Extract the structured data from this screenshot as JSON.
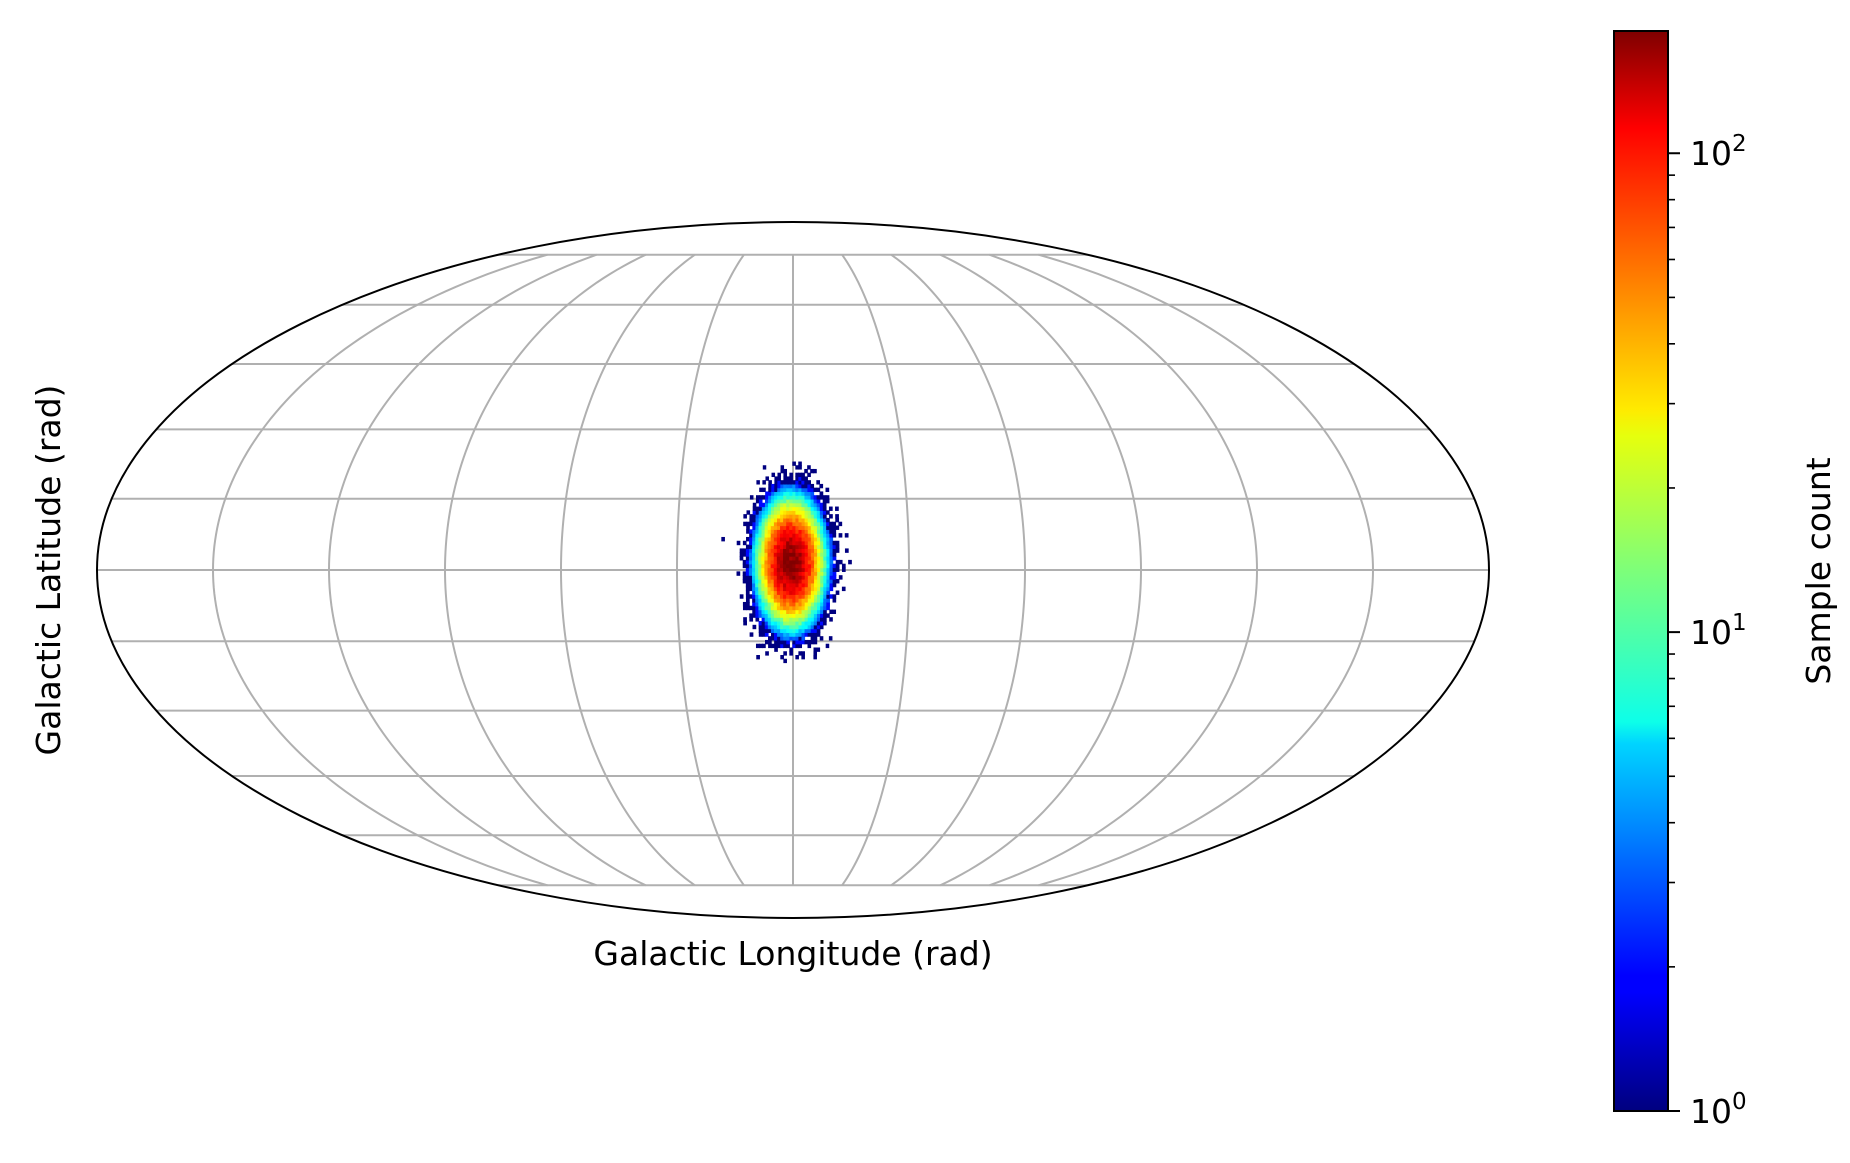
{
  "chart_data": {
    "type": "heatmap",
    "projection": "mollweide",
    "title": "",
    "xlabel": "Galactic Longitude (rad)",
    "ylabel": "Galactic Latitude (rad)",
    "xlim": [
      -3.14159,
      3.14159
    ],
    "ylim": [
      -1.5708,
      1.5708
    ],
    "grid": true,
    "gridlines": {
      "longitude_deg": [
        -150,
        -120,
        -90,
        -60,
        -30,
        0,
        30,
        60,
        90,
        120,
        150
      ],
      "latitude_deg": [
        -75,
        -60,
        -45,
        -30,
        -15,
        0,
        15,
        30,
        45,
        60,
        75
      ]
    },
    "colormap": "jet",
    "colorbar": {
      "label": "Sample count",
      "scale": "log",
      "range": [
        1,
        180
      ],
      "major_ticks": [
        {
          "value": 1,
          "base": "10",
          "exp": "0"
        },
        {
          "value": 10,
          "base": "10",
          "exp": "1"
        },
        {
          "value": 100,
          "base": "10",
          "exp": "2"
        }
      ],
      "minor_ticks": [
        2,
        3,
        4,
        5,
        6,
        7,
        8,
        9,
        20,
        30,
        40,
        50,
        60,
        70,
        80,
        90
      ]
    },
    "distribution": {
      "center_lon_rad": -0.01,
      "center_lat_rad": 0.03,
      "sigma_lon_rad": 0.065,
      "sigma_lat_rad": 0.1,
      "peak_count": 175,
      "bin_width_rad": 0.014,
      "bin_height_rad": 0.014,
      "total_samples": 16000
    }
  }
}
